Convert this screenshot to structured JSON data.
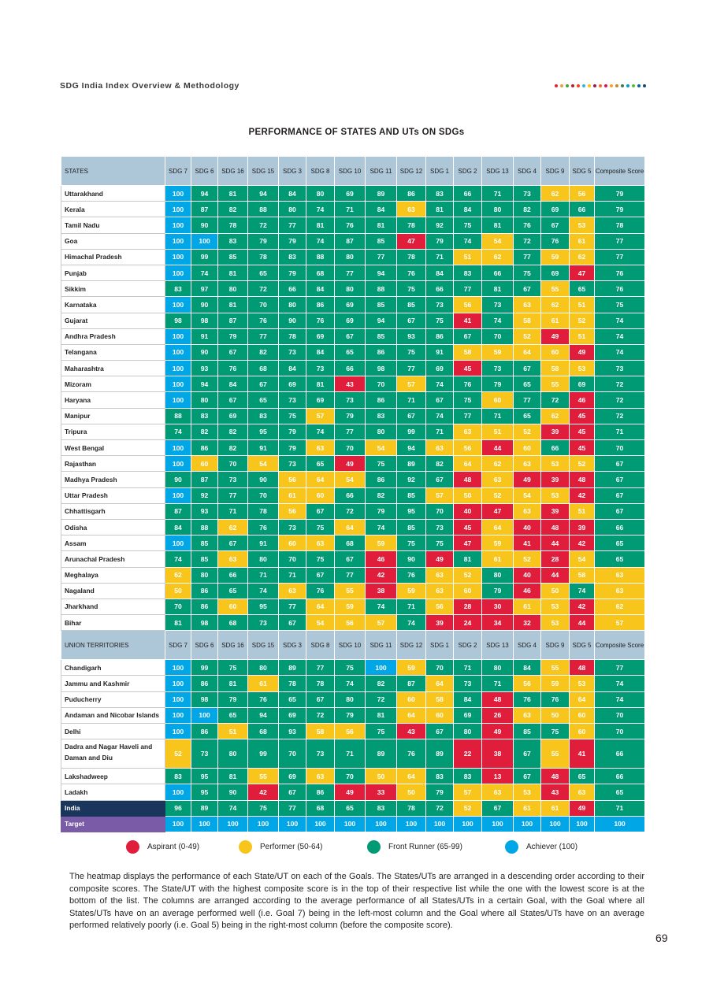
{
  "header": {
    "title": "SDG India Index Overview & Methodology",
    "dot_colors": [
      "#e5243b",
      "#dda63a",
      "#4c9f38",
      "#c5192d",
      "#ff3a21",
      "#26bde2",
      "#fcc30b",
      "#a21942",
      "#fd6925",
      "#dd1367",
      "#fd9d24",
      "#bf8b2e",
      "#3f7e44",
      "#0a97d9",
      "#56c02b",
      "#00689d",
      "#19486a"
    ]
  },
  "title": "PERFORMANCE OF STATES AND UTs ON SDGs",
  "columns": [
    "SDG 7",
    "SDG 6",
    "SDG 16",
    "SDG 15",
    "SDG 3",
    "SDG 8",
    "SDG 10",
    "SDG 11",
    "SDG 12",
    "SDG 1",
    "SDG 2",
    "SDG 13",
    "SDG 4",
    "SDG 9",
    "SDG 5"
  ],
  "composite_label": "Composite Score",
  "states_header": "STATES",
  "ut_header": "UNION TERRITORIES",
  "colors": {
    "aspirant": "#e01e3c",
    "performer": "#f7c51b",
    "front_runner": "#009a74",
    "achiever": "#00a6e6"
  },
  "states": [
    {
      "name": "Uttarakhand",
      "values": [
        100,
        94,
        81,
        94,
        84,
        80,
        69,
        89,
        86,
        83,
        66,
        71,
        73,
        62,
        56
      ],
      "composite": 79
    },
    {
      "name": "Kerala",
      "values": [
        100,
        87,
        82,
        88,
        80,
        74,
        71,
        84,
        63,
        81,
        84,
        80,
        82,
        69,
        66
      ],
      "composite": 79
    },
    {
      "name": "Tamil Nadu",
      "values": [
        100,
        90,
        78,
        72,
        77,
        81,
        76,
        81,
        78,
        92,
        75,
        81,
        76,
        67,
        53
      ],
      "composite": 78
    },
    {
      "name": "Goa",
      "values": [
        100,
        100,
        83,
        79,
        79,
        74,
        87,
        85,
        47,
        79,
        74,
        54,
        72,
        76,
        61
      ],
      "composite": 77
    },
    {
      "name": "Himachal Pradesh",
      "values": [
        100,
        99,
        85,
        78,
        83,
        88,
        80,
        77,
        78,
        71,
        51,
        62,
        77,
        59,
        62
      ],
      "composite": 77
    },
    {
      "name": "Punjab",
      "values": [
        100,
        74,
        81,
        65,
        79,
        68,
        77,
        94,
        76,
        84,
        83,
        66,
        75,
        69,
        47
      ],
      "composite": 76
    },
    {
      "name": "Sikkim",
      "values": [
        83,
        97,
        80,
        72,
        66,
        84,
        80,
        88,
        75,
        66,
        77,
        81,
        67,
        55,
        65
      ],
      "composite": 76
    },
    {
      "name": "Karnataka",
      "values": [
        100,
        90,
        81,
        70,
        80,
        86,
        69,
        85,
        85,
        73,
        56,
        73,
        63,
        62,
        51
      ],
      "composite": 75
    },
    {
      "name": "Gujarat",
      "values": [
        98,
        98,
        87,
        76,
        90,
        76,
        69,
        94,
        67,
        75,
        41,
        74,
        58,
        61,
        52
      ],
      "composite": 74
    },
    {
      "name": "Andhra Pradesh",
      "values": [
        100,
        91,
        79,
        77,
        78,
        69,
        67,
        85,
        93,
        86,
        67,
        70,
        52,
        49,
        51
      ],
      "composite": 74
    },
    {
      "name": "Telangana",
      "values": [
        100,
        90,
        67,
        82,
        73,
        84,
        65,
        86,
        75,
        91,
        58,
        59,
        64,
        60,
        49
      ],
      "composite": 74
    },
    {
      "name": "Maharashtra",
      "values": [
        100,
        93,
        76,
        68,
        84,
        73,
        66,
        98,
        77,
        69,
        45,
        73,
        67,
        58,
        53
      ],
      "composite": 73
    },
    {
      "name": "Mizoram",
      "values": [
        100,
        94,
        84,
        67,
        69,
        81,
        43,
        70,
        57,
        74,
        76,
        79,
        65,
        55,
        69
      ],
      "composite": 72
    },
    {
      "name": "Haryana",
      "values": [
        100,
        80,
        67,
        65,
        73,
        69,
        73,
        86,
        71,
        67,
        75,
        60,
        77,
        72,
        46
      ],
      "composite": 72
    },
    {
      "name": "Manipur",
      "values": [
        88,
        83,
        69,
        83,
        75,
        57,
        79,
        83,
        67,
        74,
        77,
        71,
        65,
        62,
        45
      ],
      "composite": 72
    },
    {
      "name": "Tripura",
      "values": [
        74,
        82,
        82,
        95,
        79,
        74,
        77,
        80,
        99,
        71,
        63,
        51,
        52,
        39,
        45
      ],
      "composite": 71
    },
    {
      "name": "West Bengal",
      "values": [
        100,
        86,
        82,
        91,
        79,
        63,
        70,
        54,
        94,
        63,
        56,
        44,
        60,
        66,
        45
      ],
      "composite": 70
    },
    {
      "name": "Rajasthan",
      "values": [
        100,
        60,
        70,
        54,
        73,
        65,
        49,
        75,
        89,
        82,
        64,
        62,
        63,
        53,
        52
      ],
      "composite": 67
    },
    {
      "name": "Madhya Pradesh",
      "values": [
        90,
        87,
        73,
        90,
        56,
        64,
        54,
        86,
        92,
        67,
        48,
        63,
        49,
        39,
        48
      ],
      "composite": 67
    },
    {
      "name": "Uttar Pradesh",
      "values": [
        100,
        92,
        77,
        70,
        61,
        60,
        66,
        82,
        85,
        57,
        50,
        52,
        54,
        53,
        42
      ],
      "composite": 67
    },
    {
      "name": "Chhattisgarh",
      "values": [
        87,
        93,
        71,
        78,
        56,
        67,
        72,
        79,
        95,
        70,
        40,
        47,
        63,
        39,
        51
      ],
      "composite": 67
    },
    {
      "name": "Odisha",
      "values": [
        84,
        88,
        62,
        76,
        73,
        75,
        64,
        74,
        85,
        73,
        45,
        64,
        40,
        48,
        39
      ],
      "composite": 66
    },
    {
      "name": "Assam",
      "values": [
        100,
        85,
        67,
        91,
        60,
        63,
        68,
        59,
        75,
        75,
        47,
        59,
        41,
        44,
        42
      ],
      "composite": 65
    },
    {
      "name": "Arunachal Pradesh",
      "values": [
        74,
        85,
        63,
        80,
        70,
        75,
        67,
        46,
        90,
        49,
        81,
        61,
        52,
        28,
        54
      ],
      "composite": 65
    },
    {
      "name": "Meghalaya",
      "values": [
        62,
        80,
        66,
        71,
        71,
        67,
        77,
        42,
        76,
        63,
        52,
        80,
        40,
        44,
        58
      ],
      "composite": 63
    },
    {
      "name": "Nagaland",
      "values": [
        50,
        86,
        65,
        74,
        63,
        76,
        55,
        38,
        59,
        63,
        60,
        79,
        46,
        50,
        74
      ],
      "composite": 63
    },
    {
      "name": "Jharkhand",
      "values": [
        70,
        86,
        60,
        95,
        77,
        64,
        59,
        74,
        71,
        56,
        28,
        30,
        61,
        53,
        42
      ],
      "composite": 62
    },
    {
      "name": "Bihar",
      "values": [
        81,
        98,
        68,
        73,
        67,
        54,
        56,
        57,
        74,
        39,
        24,
        34,
        32,
        53,
        44
      ],
      "composite": 57
    }
  ],
  "uts": [
    {
      "name": "Chandigarh",
      "values": [
        100,
        99,
        75,
        80,
        89,
        77,
        75,
        100,
        59,
        70,
        71,
        80,
        84,
        55,
        48
      ],
      "composite": 77
    },
    {
      "name": "Jammu and Kashmir",
      "values": [
        100,
        86,
        81,
        61,
        78,
        78,
        74,
        82,
        87,
        64,
        73,
        71,
        56,
        59,
        53
      ],
      "composite": 74
    },
    {
      "name": "Puducherry",
      "values": [
        100,
        98,
        79,
        76,
        65,
        67,
        80,
        72,
        60,
        58,
        84,
        48,
        76,
        76,
        64
      ],
      "composite": 74
    },
    {
      "name": "Andaman and Nicobar Islands",
      "values": [
        100,
        100,
        65,
        94,
        69,
        72,
        79,
        81,
        64,
        60,
        69,
        26,
        63,
        50,
        60
      ],
      "composite": 70
    },
    {
      "name": "Delhi",
      "values": [
        100,
        86,
        51,
        68,
        93,
        58,
        56,
        75,
        43,
        67,
        80,
        49,
        85,
        75,
        60
      ],
      "composite": 70
    },
    {
      "name": "Dadra and Nagar Haveli and Daman and Diu",
      "values": [
        52,
        73,
        80,
        99,
        70,
        73,
        71,
        89,
        76,
        89,
        22,
        38,
        67,
        55,
        41
      ],
      "composite": 66
    },
    {
      "name": "Lakshadweep",
      "values": [
        83,
        95,
        81,
        55,
        69,
        63,
        70,
        50,
        64,
        83,
        83,
        13,
        67,
        48,
        65
      ],
      "composite": 66
    },
    {
      "name": "Ladakh",
      "values": [
        100,
        95,
        90,
        42,
        67,
        86,
        49,
        33,
        50,
        79,
        57,
        63,
        53,
        43,
        63
      ],
      "composite": 65
    }
  ],
  "india": {
    "name": "India",
    "values": [
      96,
      89,
      74,
      75,
      77,
      68,
      65,
      83,
      78,
      72,
      52,
      67,
      61,
      61,
      49
    ],
    "composite": 71
  },
  "target": {
    "name": "Target",
    "values": [
      100,
      100,
      100,
      100,
      100,
      100,
      100,
      100,
      100,
      100,
      100,
      100,
      100,
      100,
      100
    ],
    "composite": 100
  },
  "legend": [
    {
      "key": "aspirant",
      "label": "Aspirant (0-49)"
    },
    {
      "key": "performer",
      "label": "Performer (50-64)"
    },
    {
      "key": "front_runner",
      "label": "Front Runner (65-99)"
    },
    {
      "key": "achiever",
      "label": "Achiever (100)"
    }
  ],
  "description": "The heatmap displays the performance of each State/UT on each of the Goals. The States/UTs are arranged in a descending order according to their composite scores. The State/UT with the highest composite score is in the top of their respective list while the one with the lowest score is at the bottom of the list. The columns are arranged according to the average performance of all States/UTs in a certain Goal, with the Goal where all States/UTs have on an average performed well (i.e. Goal 7) being in the left-most column and the Goal where all States/UTs have on an average performed relatively poorly (i.e. Goal 5) being in the right-most column (before the composite score).",
  "page_number": "69"
}
